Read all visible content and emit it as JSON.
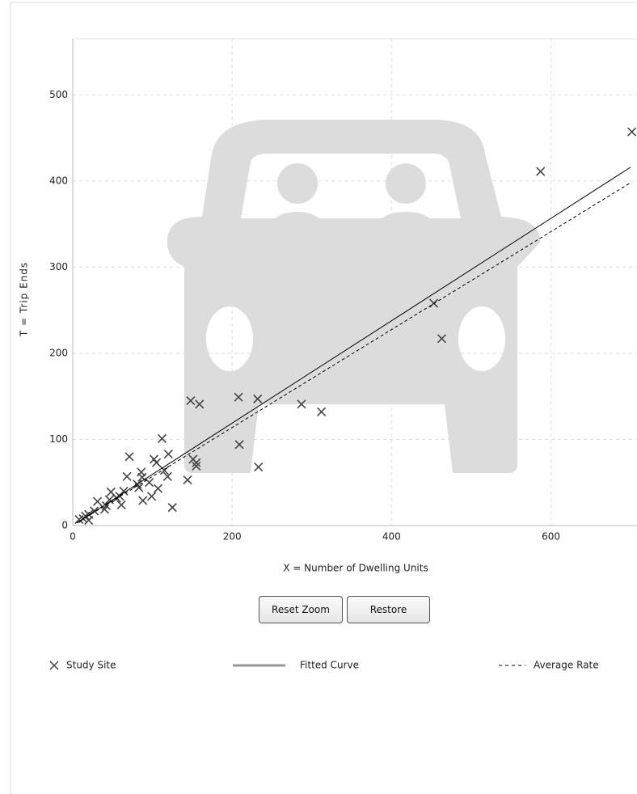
{
  "chart_data": {
    "type": "scatter",
    "x_label": "X = Number of Dwelling Units",
    "y_label": "T = Trip Ends",
    "xlim": [
      0,
      708
    ],
    "ylim": [
      0,
      565
    ],
    "xticks": [
      0,
      200,
      400,
      600
    ],
    "yticks": [
      0,
      100,
      200,
      300,
      400,
      500
    ],
    "grid": true,
    "legend": "bottom",
    "series": [
      {
        "name": "Study Site",
        "kind": "points",
        "color": "#444444",
        "x": [
          701.5,
          587,
          453,
          463,
          287,
          312,
          233,
          232,
          208,
          209,
          148,
          159,
          144,
          155,
          155,
          151,
          112,
          119,
          120,
          125,
          115,
          105,
          102,
          107,
          99,
          96,
          87,
          86,
          83,
          88,
          81,
          71,
          68,
          64,
          61,
          59,
          55,
          48,
          46,
          42,
          40,
          31,
          27,
          20,
          16,
          13,
          20,
          8
        ],
        "values": [
          457,
          411,
          258,
          217,
          141,
          132,
          68,
          147,
          149,
          94,
          145,
          141,
          53,
          69,
          73,
          77,
          101,
          57,
          83,
          21,
          64,
          73,
          77,
          43,
          34,
          50,
          56,
          62,
          44,
          29,
          48,
          80,
          57,
          40,
          24,
          34,
          32,
          39,
          30,
          23,
          19,
          28,
          17,
          13,
          11,
          8,
          6,
          7
        ]
      },
      {
        "name": "Fitted Curve",
        "kind": "line",
        "color": "#000000",
        "x": [
          5,
          700
        ],
        "values": [
          3,
          416
        ]
      },
      {
        "name": "Average Rate",
        "kind": "dashed",
        "color": "#000000",
        "x": [
          5,
          700
        ],
        "values": [
          3,
          398
        ]
      }
    ]
  },
  "buttons": [
    "Reset Zoom",
    "Restore"
  ]
}
